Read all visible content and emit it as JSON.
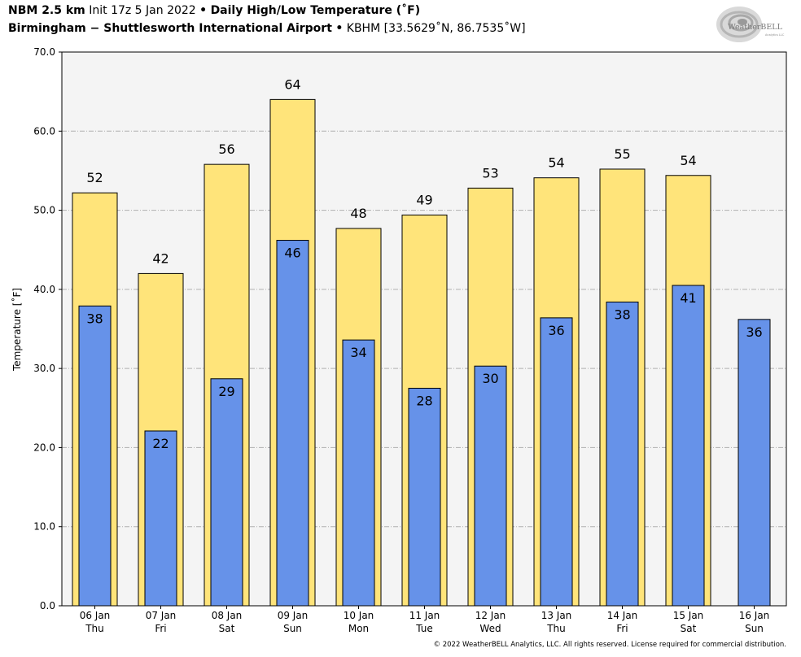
{
  "header": {
    "line1_model": "NBM 2.5 km",
    "line1_init": "Init 17z 5 Jan 2022",
    "line1_sep": "•",
    "line1_product": "Daily High/Low Temperature (˚F)",
    "line2_station": "Birmingham − Shuttlesworth International Airport",
    "line2_sep": "•",
    "line2_coords": "KBHM [33.5629˚N, 86.7535˚W]"
  },
  "logo": {
    "text": "WeatherBELL",
    "sub": "Analytics LLC"
  },
  "copyright": "© 2022 WeatherBELL Analytics, LLC. All rights reserved. License required for commercial distribution.",
  "colors": {
    "high_bar": "#ffe47a",
    "low_bar": "#6692e9",
    "plot_bg": "#f4f4f4",
    "grid": "#b0b0b0"
  },
  "chart_data": {
    "type": "bar",
    "title": "Daily High/Low Temperature (˚F)",
    "ylabel": "Temperature [˚F]",
    "ylim": [
      0,
      70
    ],
    "yticks": [
      "0.0",
      "10.0",
      "20.0",
      "30.0",
      "40.0",
      "50.0",
      "60.0",
      "70.0"
    ],
    "grid": true,
    "categories": [
      {
        "date": "06 Jan",
        "day": "Thu"
      },
      {
        "date": "07 Jan",
        "day": "Fri"
      },
      {
        "date": "08 Jan",
        "day": "Sat"
      },
      {
        "date": "09 Jan",
        "day": "Sun"
      },
      {
        "date": "10 Jan",
        "day": "Mon"
      },
      {
        "date": "11 Jan",
        "day": "Tue"
      },
      {
        "date": "12 Jan",
        "day": "Wed"
      },
      {
        "date": "13 Jan",
        "day": "Thu"
      },
      {
        "date": "14 Jan",
        "day": "Fri"
      },
      {
        "date": "15 Jan",
        "day": "Sat"
      },
      {
        "date": "16 Jan",
        "day": "Sun"
      }
    ],
    "series": [
      {
        "role": "high",
        "values": [
          52.2,
          42.0,
          55.8,
          64.0,
          47.7,
          49.4,
          52.8,
          54.1,
          55.2,
          54.4,
          null
        ],
        "labels": [
          "52",
          "42",
          "56",
          "64",
          "48",
          "49",
          "53",
          "54",
          "55",
          "54",
          null
        ]
      },
      {
        "role": "low",
        "values": [
          37.9,
          22.1,
          28.7,
          46.2,
          33.6,
          27.5,
          30.3,
          36.4,
          38.4,
          40.5,
          36.2
        ],
        "labels": [
          "38",
          "22",
          "29",
          "46",
          "34",
          "28",
          "30",
          "36",
          "38",
          "41",
          "36"
        ]
      }
    ]
  }
}
